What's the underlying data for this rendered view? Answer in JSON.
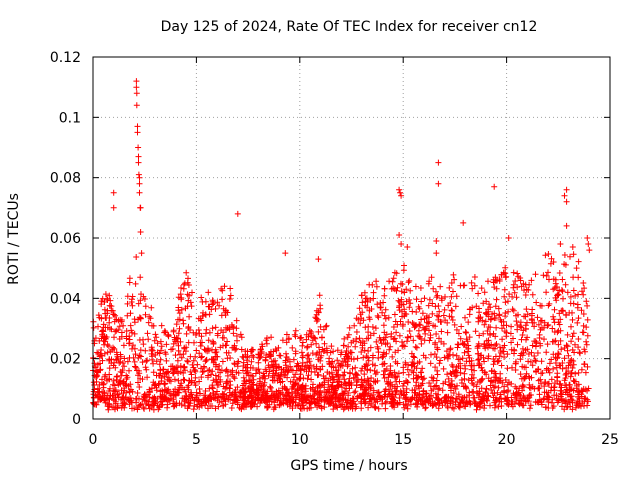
{
  "chart_data": {
    "type": "scatter",
    "title": "Day 125 of 2024, Rate Of TEC Index for receiver cn12",
    "xlabel": "GPS time / hours",
    "ylabel": "ROTI / TECUs",
    "xlim": [
      0,
      25
    ],
    "ylim": [
      0,
      0.12
    ],
    "x_ticks": [
      0,
      5,
      10,
      15,
      20,
      25
    ],
    "x_tick_labels": [
      "0",
      "5",
      "10",
      "15",
      "20",
      "25"
    ],
    "y_ticks": [
      0,
      0.02,
      0.04,
      0.06,
      0.08,
      0.1,
      0.12
    ],
    "y_tick_labels": [
      "0",
      "0.02",
      "0.04",
      "0.06",
      "0.08",
      "0.1",
      "0.12"
    ],
    "grid": true,
    "marker": "plus",
    "color": "#ff0000",
    "series": [
      {
        "name": "ROTI",
        "envelope": [
          [
            0.0,
            0.028
          ],
          [
            0.5,
            0.045
          ],
          [
            1.0,
            0.035
          ],
          [
            1.5,
            0.03
          ],
          [
            2.0,
            0.058
          ],
          [
            2.5,
            0.04
          ],
          [
            3.0,
            0.03
          ],
          [
            3.5,
            0.028
          ],
          [
            4.0,
            0.033
          ],
          [
            4.5,
            0.05
          ],
          [
            5.0,
            0.035
          ],
          [
            5.5,
            0.04
          ],
          [
            6.0,
            0.038
          ],
          [
            6.5,
            0.045
          ],
          [
            7.0,
            0.03
          ],
          [
            7.5,
            0.022
          ],
          [
            8.0,
            0.02
          ],
          [
            8.5,
            0.025
          ],
          [
            9.0,
            0.022
          ],
          [
            9.5,
            0.028
          ],
          [
            10.0,
            0.025
          ],
          [
            10.5,
            0.028
          ],
          [
            11.0,
            0.04
          ],
          [
            11.5,
            0.022
          ],
          [
            12.0,
            0.025
          ],
          [
            12.5,
            0.028
          ],
          [
            13.0,
            0.038
          ],
          [
            13.5,
            0.045
          ],
          [
            14.0,
            0.04
          ],
          [
            14.5,
            0.045
          ],
          [
            15.0,
            0.05
          ],
          [
            15.5,
            0.042
          ],
          [
            16.0,
            0.045
          ],
          [
            16.5,
            0.044
          ],
          [
            17.0,
            0.04
          ],
          [
            17.5,
            0.046
          ],
          [
            18.0,
            0.045
          ],
          [
            18.5,
            0.044
          ],
          [
            19.0,
            0.046
          ],
          [
            19.5,
            0.045
          ],
          [
            20.0,
            0.05
          ],
          [
            20.5,
            0.045
          ],
          [
            21.0,
            0.046
          ],
          [
            21.5,
            0.048
          ],
          [
            22.0,
            0.055
          ],
          [
            22.5,
            0.048
          ],
          [
            23.0,
            0.055
          ],
          [
            23.5,
            0.05
          ],
          [
            24.0,
            0.06
          ]
        ],
        "baseline": 0.007,
        "outliers": [
          [
            2.1,
            0.112
          ],
          [
            2.1,
            0.11
          ],
          [
            2.12,
            0.108
          ],
          [
            2.12,
            0.104
          ],
          [
            2.15,
            0.097
          ],
          [
            2.15,
            0.095
          ],
          [
            2.18,
            0.09
          ],
          [
            2.2,
            0.087
          ],
          [
            2.2,
            0.085
          ],
          [
            2.22,
            0.081
          ],
          [
            2.25,
            0.08
          ],
          [
            2.25,
            0.078
          ],
          [
            2.25,
            0.075
          ],
          [
            2.3,
            0.07
          ],
          [
            2.28,
            0.07
          ],
          [
            2.3,
            0.062
          ],
          [
            2.35,
            0.055
          ],
          [
            1.0,
            0.075
          ],
          [
            1.0,
            0.07
          ],
          [
            7.0,
            0.068
          ],
          [
            9.3,
            0.055
          ],
          [
            10.9,
            0.053
          ],
          [
            14.8,
            0.076
          ],
          [
            14.85,
            0.075
          ],
          [
            14.9,
            0.074
          ],
          [
            14.8,
            0.061
          ],
          [
            14.9,
            0.058
          ],
          [
            15.2,
            0.057
          ],
          [
            16.7,
            0.085
          ],
          [
            16.7,
            0.078
          ],
          [
            16.6,
            0.059
          ],
          [
            16.6,
            0.055
          ],
          [
            17.9,
            0.065
          ],
          [
            19.4,
            0.077
          ],
          [
            20.1,
            0.06
          ],
          [
            22.9,
            0.076
          ],
          [
            22.8,
            0.074
          ],
          [
            22.9,
            0.072
          ],
          [
            22.9,
            0.064
          ],
          [
            22.6,
            0.058
          ],
          [
            23.2,
            0.057
          ],
          [
            23.9,
            0.06
          ],
          [
            23.95,
            0.058
          ],
          [
            24.0,
            0.056
          ]
        ]
      }
    ]
  }
}
